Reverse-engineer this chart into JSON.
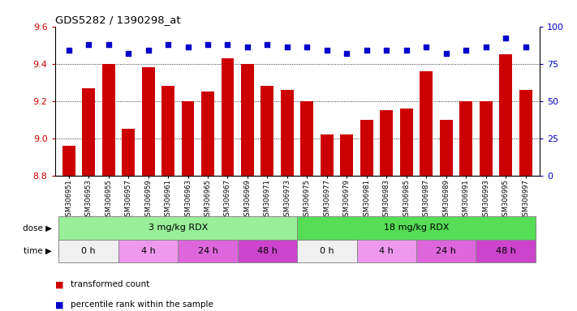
{
  "title": "GDS5282 / 1390298_at",
  "samples": [
    "GSM306951",
    "GSM306953",
    "GSM306955",
    "GSM306957",
    "GSM306959",
    "GSM306961",
    "GSM306963",
    "GSM306965",
    "GSM306967",
    "GSM306969",
    "GSM306971",
    "GSM306973",
    "GSM306975",
    "GSM306977",
    "GSM306979",
    "GSM306981",
    "GSM306983",
    "GSM306985",
    "GSM306987",
    "GSM306989",
    "GSM306991",
    "GSM306993",
    "GSM306995",
    "GSM306997"
  ],
  "bar_values": [
    8.96,
    9.27,
    9.4,
    9.05,
    9.38,
    9.28,
    9.2,
    9.25,
    9.43,
    9.4,
    9.28,
    9.26,
    9.2,
    9.02,
    9.02,
    9.1,
    9.15,
    9.16,
    9.36,
    9.1,
    9.2,
    9.2,
    9.45,
    9.26
  ],
  "percentile_values": [
    84,
    88,
    88,
    82,
    84,
    88,
    86,
    88,
    88,
    86,
    88,
    86,
    86,
    84,
    82,
    84,
    84,
    84,
    86,
    82,
    84,
    86,
    92,
    86
  ],
  "ylim_left": [
    8.8,
    9.6
  ],
  "ylim_right": [
    0,
    100
  ],
  "yticks_left": [
    8.8,
    9.0,
    9.2,
    9.4,
    9.6
  ],
  "yticks_right": [
    0,
    25,
    50,
    75,
    100
  ],
  "bar_color": "#cc0000",
  "dot_color": "#0000cc",
  "dose_groups": [
    {
      "label": "3 mg/kg RDX",
      "start": 0,
      "end": 12,
      "color": "#99ee99"
    },
    {
      "label": "18 mg/kg RDX",
      "start": 12,
      "end": 24,
      "color": "#55dd55"
    }
  ],
  "time_groups": [
    {
      "label": "0 h",
      "start": 0,
      "end": 3,
      "color": "#f0f0f0"
    },
    {
      "label": "4 h",
      "start": 3,
      "end": 6,
      "color": "#ee99ee"
    },
    {
      "label": "24 h",
      "start": 6,
      "end": 9,
      "color": "#dd66dd"
    },
    {
      "label": "48 h",
      "start": 9,
      "end": 12,
      "color": "#cc44cc"
    },
    {
      "label": "0 h",
      "start": 12,
      "end": 15,
      "color": "#f0f0f0"
    },
    {
      "label": "4 h",
      "start": 15,
      "end": 18,
      "color": "#ee99ee"
    },
    {
      "label": "24 h",
      "start": 18,
      "end": 21,
      "color": "#dd66dd"
    },
    {
      "label": "48 h",
      "start": 21,
      "end": 24,
      "color": "#cc44cc"
    }
  ],
  "legend_items": [
    {
      "label": "transformed count",
      "color": "#cc0000"
    },
    {
      "label": "percentile rank within the sample",
      "color": "#0000cc"
    }
  ],
  "bg_color": "#ffffff",
  "tick_color_left": "#cc0000",
  "tick_color_right": "#0000cc"
}
